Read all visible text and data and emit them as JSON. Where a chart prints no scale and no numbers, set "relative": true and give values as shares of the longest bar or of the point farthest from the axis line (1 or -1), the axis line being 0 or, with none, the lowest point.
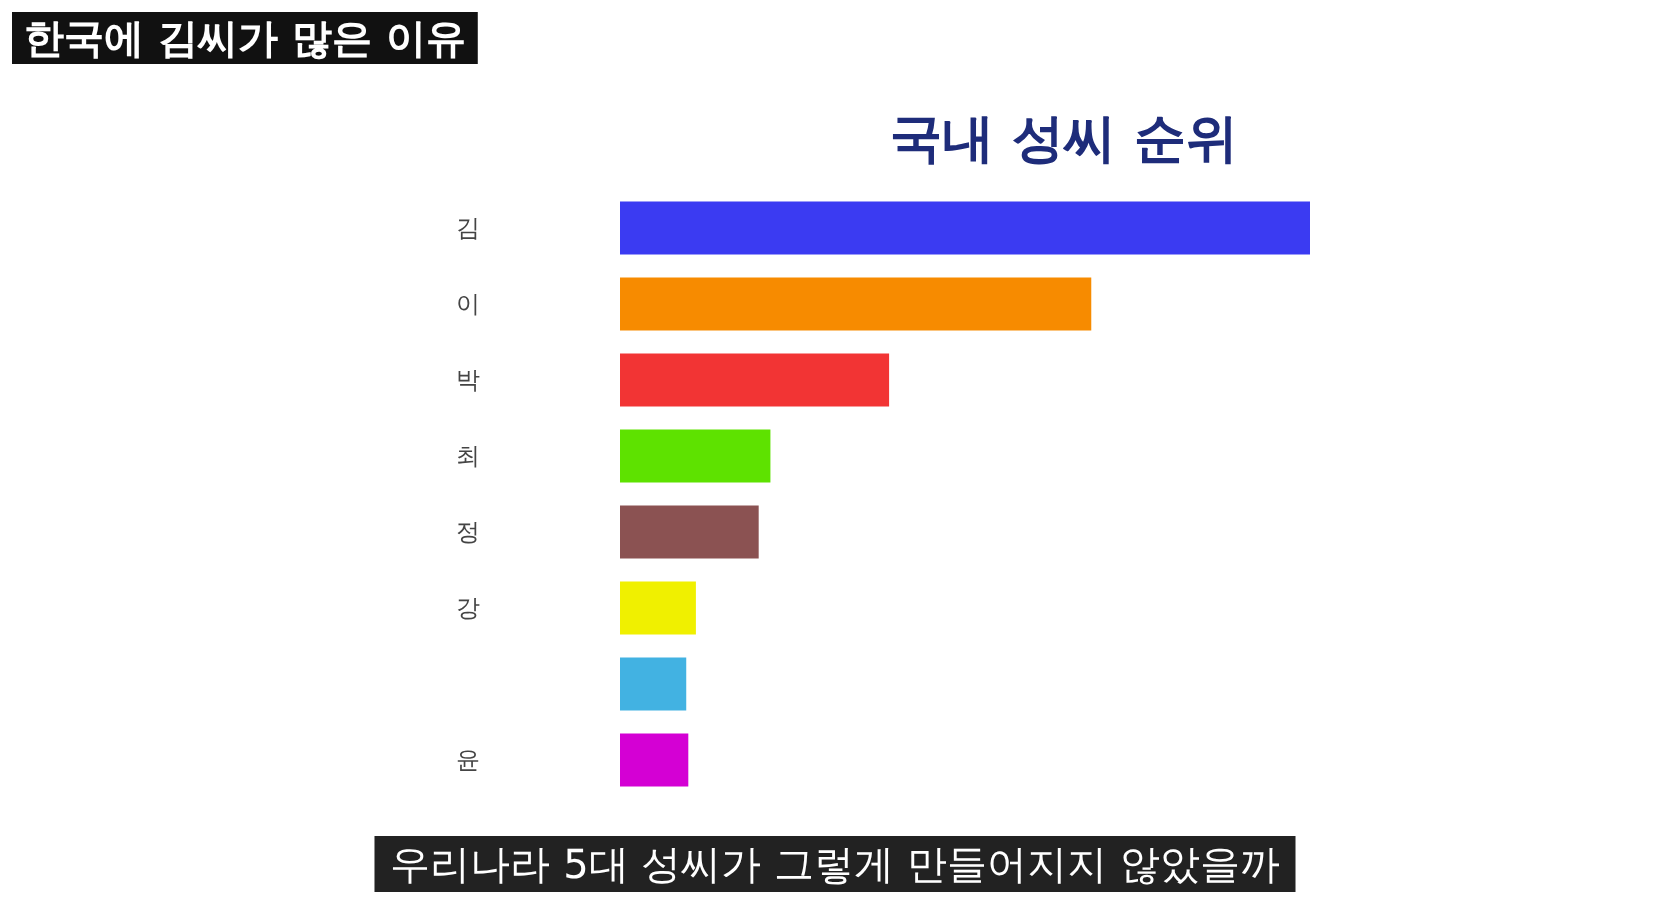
{
  "chart_data": {
    "type": "bar",
    "orientation": "horizontal",
    "relative": true,
    "title": "국내 성씨 순위",
    "categories": [
      "김",
      "이",
      "박",
      "최",
      "정",
      "강",
      null,
      "윤"
    ],
    "values": [
      1,
      0.683,
      0.39,
      0.218,
      0.201,
      0.11,
      0.096,
      0.099
    ],
    "colors": [
      "#3b3bf2",
      "#f78b00",
      "#f23434",
      "#5ee200",
      "#8b5252",
      "#f0f000",
      "#42b2e2",
      "#d400d4"
    ],
    "annotations": [
      "한국에 김씨가 많은 이유",
      "우리나라 5대 성씨가 그렇게 만들어지지 않았을까"
    ]
  }
}
